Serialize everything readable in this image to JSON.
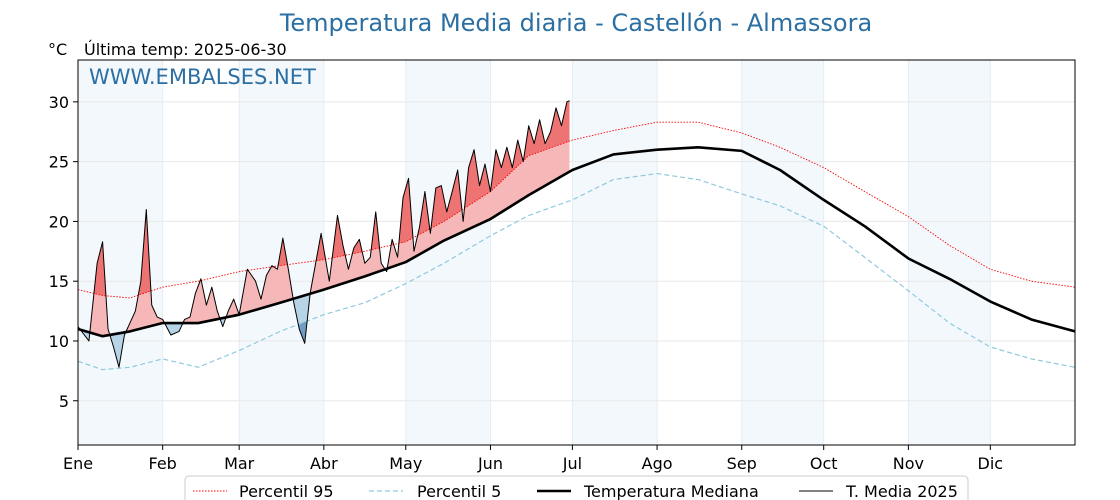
{
  "chart_data": {
    "type": "line",
    "title": "Temperatura Media diaria - Castellón - Almassora",
    "subtitle": "Última temp: 2025-06-30",
    "y_unit": "°C",
    "watermark": "WWW.EMBALSES.NET",
    "xlabel": "",
    "ylabel": "",
    "ylim": [
      1.3,
      33.5
    ],
    "yticks": [
      5,
      10,
      15,
      20,
      25,
      30
    ],
    "x_months": [
      "Ene",
      "Feb",
      "Mar",
      "Abr",
      "May",
      "Jun",
      "Jul",
      "Ago",
      "Sep",
      "Oct",
      "Nov",
      "Dic"
    ],
    "x_month_start_day": [
      1,
      32,
      60,
      91,
      121,
      152,
      182,
      213,
      244,
      274,
      305,
      335
    ],
    "xlim_days": [
      1,
      366
    ],
    "grid": true,
    "legend_position": "bottom",
    "series": [
      {
        "name": "Percentil 95",
        "color": "#ff0000",
        "style": "dotted",
        "x": [
          1,
          10,
          20,
          32,
          45,
          60,
          75,
          91,
          106,
          121,
          135,
          152,
          166,
          182,
          197,
          213,
          228,
          244,
          258,
          274,
          289,
          305,
          320,
          335,
          350,
          366
        ],
        "y": [
          14.3,
          13.8,
          13.6,
          14.5,
          15.0,
          15.8,
          16.3,
          16.8,
          17.5,
          18.3,
          20.0,
          22.5,
          25.5,
          26.8,
          27.6,
          28.3,
          28.3,
          27.4,
          26.2,
          24.5,
          22.5,
          20.4,
          18.0,
          16.0,
          15.0,
          14.5
        ]
      },
      {
        "name": "Percentil 5",
        "color": "#8fc9dd",
        "style": "dashed",
        "x": [
          1,
          10,
          20,
          32,
          45,
          60,
          75,
          91,
          106,
          121,
          135,
          152,
          166,
          182,
          197,
          213,
          228,
          244,
          258,
          274,
          289,
          305,
          320,
          335,
          350,
          366
        ],
        "y": [
          8.3,
          7.6,
          7.8,
          8.5,
          7.8,
          9.2,
          10.8,
          12.2,
          13.2,
          14.8,
          16.5,
          18.8,
          20.5,
          21.8,
          23.5,
          24.0,
          23.5,
          22.3,
          21.3,
          19.6,
          17.0,
          14.2,
          11.5,
          9.5,
          8.5,
          7.8
        ]
      },
      {
        "name": "Temperatura Mediana",
        "color": "#000000",
        "style": "solid-thick",
        "x": [
          1,
          10,
          20,
          32,
          45,
          60,
          75,
          91,
          106,
          121,
          135,
          152,
          166,
          182,
          197,
          213,
          228,
          244,
          258,
          274,
          289,
          305,
          320,
          335,
          350,
          366
        ],
        "y": [
          11.0,
          10.4,
          10.8,
          11.5,
          11.5,
          12.2,
          13.2,
          14.3,
          15.4,
          16.6,
          18.4,
          20.2,
          22.2,
          24.3,
          25.6,
          26.0,
          26.2,
          25.9,
          24.3,
          21.8,
          19.6,
          16.9,
          15.2,
          13.3,
          11.8,
          10.8
        ]
      },
      {
        "name": "T. Media 2025",
        "color": "#000000",
        "style": "solid-thin",
        "x": [
          1,
          5,
          8,
          10,
          12,
          14,
          16,
          18,
          20,
          22,
          24,
          26,
          28,
          30,
          32,
          35,
          38,
          40,
          42,
          44,
          46,
          48,
          50,
          52,
          54,
          56,
          58,
          60,
          63,
          66,
          68,
          70,
          72,
          74,
          76,
          78,
          80,
          82,
          84,
          86,
          88,
          90,
          93,
          96,
          98,
          100,
          102,
          104,
          106,
          108,
          110,
          112,
          114,
          116,
          118,
          120,
          122,
          124,
          126,
          128,
          130,
          132,
          134,
          136,
          138,
          140,
          142,
          144,
          146,
          148,
          150,
          152,
          154,
          156,
          158,
          160,
          162,
          164,
          166,
          168,
          170,
          172,
          174,
          176,
          178,
          180,
          181
        ],
        "y": [
          11.2,
          10.0,
          16.5,
          18.3,
          11.0,
          9.5,
          7.8,
          10.5,
          11.5,
          12.5,
          15.0,
          21.0,
          13.0,
          12.0,
          11.8,
          10.5,
          10.8,
          11.8,
          12.0,
          14.0,
          15.2,
          13.0,
          14.5,
          12.5,
          11.2,
          12.5,
          13.5,
          12.2,
          16.0,
          15.0,
          13.5,
          15.5,
          16.3,
          16.0,
          18.6,
          16.0,
          13.2,
          11.0,
          9.8,
          14.0,
          16.5,
          19.0,
          15.0,
          20.5,
          18.0,
          16.0,
          17.8,
          18.5,
          16.5,
          17.0,
          20.8,
          16.5,
          15.8,
          18.5,
          17.0,
          22.0,
          23.6,
          17.5,
          19.5,
          22.5,
          19.0,
          22.8,
          23.0,
          20.8,
          22.5,
          24.3,
          20.0,
          24.5,
          26.0,
          23.0,
          24.8,
          22.5,
          26.0,
          24.5,
          26.2,
          24.5,
          26.8,
          25.0,
          28.0,
          26.5,
          28.5,
          26.5,
          27.5,
          29.5,
          28.0,
          30.0,
          30.1
        ]
      }
    ]
  },
  "legend": [
    {
      "label": "Percentil 95"
    },
    {
      "label": "Percentil 5"
    },
    {
      "label": "Temperatura Mediana"
    },
    {
      "label": "T. Media 2025"
    }
  ]
}
